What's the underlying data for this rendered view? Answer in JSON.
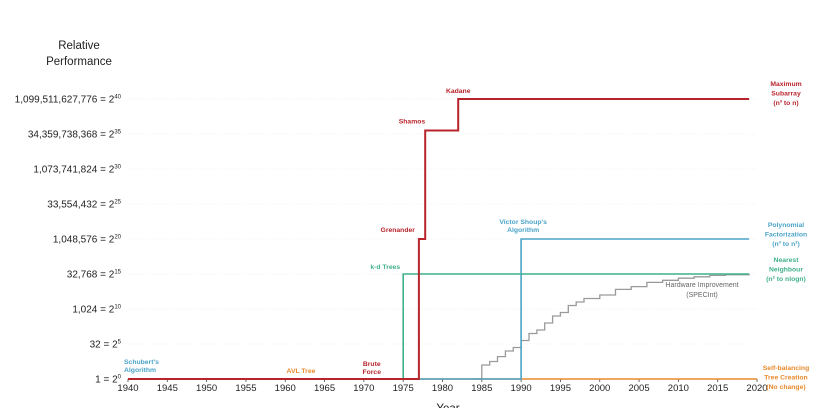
{
  "chart_data": {
    "type": "line",
    "title": "",
    "ylabel": "Relative Performance",
    "xlabel": "Year",
    "y_scale": "log2",
    "x_range": [
      1940,
      2020
    ],
    "x_ticks": [
      1940,
      1945,
      1950,
      1955,
      1960,
      1965,
      1970,
      1975,
      1980,
      1985,
      1990,
      1995,
      2000,
      2005,
      2010,
      2015,
      2020
    ],
    "y_ticks": [
      {
        "exp": 0,
        "value": "1",
        "label": "1 = 2",
        "sup": "0"
      },
      {
        "exp": 5,
        "value": "32",
        "label": "32 = 2",
        "sup": "5"
      },
      {
        "exp": 10,
        "value": "1,024",
        "label": "1,024 = 2",
        "sup": "10"
      },
      {
        "exp": 15,
        "value": "32,768",
        "label": "32,768 = 2",
        "sup": "15"
      },
      {
        "exp": 20,
        "value": "1,048,576",
        "label": "1,048,576 = 2",
        "sup": "20"
      },
      {
        "exp": 25,
        "value": "33,554,432",
        "label": "33,554,432 = 2",
        "sup": "25"
      },
      {
        "exp": 30,
        "value": "1,073,741,824",
        "label": "1,073,741,824 = 2",
        "sup": "30"
      },
      {
        "exp": 35,
        "value": "34,359,738,368",
        "label": "34,359,738,368 = 2",
        "sup": "35"
      },
      {
        "exp": 40,
        "value": "1,099,511,627,776",
        "label": "1,099,511,627,776 = 2",
        "sup": "40"
      }
    ],
    "series": [
      {
        "key": "self_balancing",
        "color": "#e8892c",
        "points": [
          [
            1940,
            0
          ],
          [
            2020,
            0
          ]
        ],
        "end_label": [
          "Self-balancing",
          "Tree Creation",
          "(No change)"
        ],
        "annotations": [
          {
            "text": [
              "AVL Tree"
            ],
            "x": 1962,
            "y": 0
          }
        ]
      },
      {
        "key": "polynomial",
        "color": "#4aa3c8",
        "points": [
          [
            1940,
            0
          ],
          [
            1990,
            0
          ],
          [
            1990,
            20
          ],
          [
            2019,
            20
          ]
        ],
        "end_label": [
          "Polynomial",
          "Factorization",
          "(n³ to n²)"
        ],
        "annotations": [
          {
            "text": [
              "Schubert's",
              "Algorithm"
            ],
            "x": 1940,
            "y": 0
          },
          {
            "text": [
              "Victor Shoup's",
              "Algorithm"
            ],
            "x": 1990,
            "y": 20
          }
        ]
      },
      {
        "key": "nearest_neighbour",
        "color": "#3fb08c",
        "points": [
          [
            1940,
            0
          ],
          [
            1975,
            0
          ],
          [
            1975,
            15
          ],
          [
            2019,
            15
          ]
        ],
        "end_label": [
          "Nearest",
          "Neighbour",
          "(n² to nlogn)"
        ],
        "annotations": [
          {
            "text": [
              "k-d Trees"
            ],
            "x": 1975,
            "y": 15
          }
        ]
      },
      {
        "key": "max_subarray",
        "color": "#b8242c",
        "points": [
          [
            1940,
            0
          ],
          [
            1977,
            0
          ],
          [
            1977,
            20
          ],
          [
            1977.8,
            20
          ],
          [
            1977.8,
            35.5
          ],
          [
            1982,
            35.5
          ],
          [
            1982,
            40
          ],
          [
            2019,
            40
          ]
        ],
        "end_label": [
          "Maximum",
          "Subarray",
          "(n³ to n)"
        ],
        "annotations": [
          {
            "text": [
              "Brute",
              "Force"
            ],
            "x": 1971,
            "y": 0
          },
          {
            "text": [
              "Grenander"
            ],
            "x": 1977,
            "y": 20
          },
          {
            "text": [
              "Shamos"
            ],
            "x": 1977.8,
            "y": 35.5
          },
          {
            "text": [
              "Kadane"
            ],
            "x": 1982,
            "y": 40
          }
        ]
      },
      {
        "key": "hardware",
        "color": "#9a9a9a",
        "name": "Hardware Improvement (SPECInt)",
        "points": [
          [
            1984,
            0
          ],
          [
            1985,
            2
          ],
          [
            1986,
            2.5
          ],
          [
            1987,
            3.2
          ],
          [
            1988,
            4
          ],
          [
            1989,
            4.5
          ],
          [
            1990,
            5.5
          ],
          [
            1991,
            6.5
          ],
          [
            1992,
            7
          ],
          [
            1993,
            8
          ],
          [
            1994,
            9
          ],
          [
            1995,
            9.5
          ],
          [
            1996,
            10.5
          ],
          [
            1997,
            11
          ],
          [
            1998,
            11.5
          ],
          [
            2000,
            12
          ],
          [
            2002,
            12.8
          ],
          [
            2004,
            13.2
          ],
          [
            2006,
            13.8
          ],
          [
            2008,
            14.1
          ],
          [
            2010,
            14.4
          ],
          [
            2012,
            14.6
          ],
          [
            2014,
            14.8
          ],
          [
            2016,
            14.9
          ],
          [
            2019,
            15
          ]
        ],
        "label": [
          "Hardware Improvement",
          "(SPECInt)"
        ]
      }
    ],
    "legend": "none",
    "grid": false
  }
}
